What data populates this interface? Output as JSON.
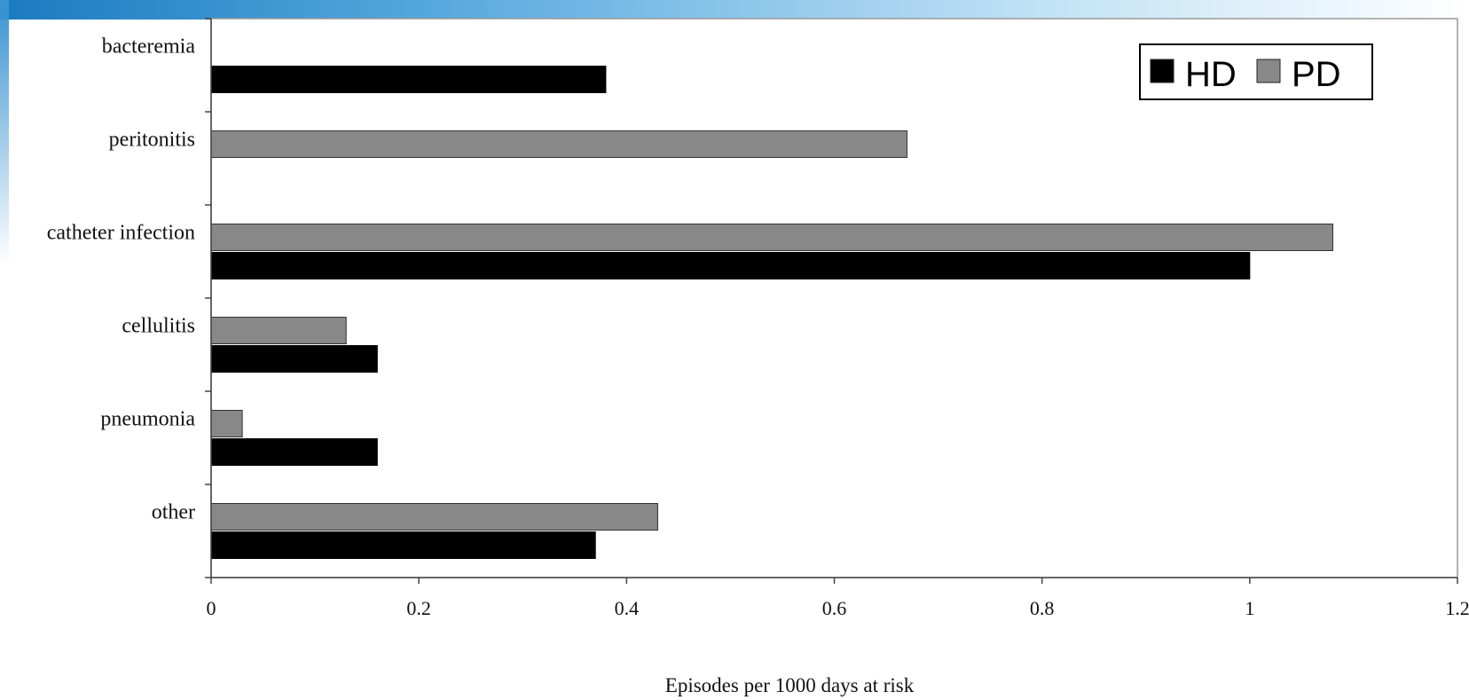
{
  "chart_data": {
    "type": "bar",
    "orientation": "horizontal",
    "categories": [
      "bacteremia",
      "peritonitis",
      "catheter infection",
      "cellulitis",
      "pneumonia",
      "other"
    ],
    "series": [
      {
        "name": "HD",
        "color": "#000000",
        "values": [
          0.38,
          null,
          1.0,
          0.16,
          0.16,
          0.37
        ]
      },
      {
        "name": "PD",
        "color": "#888888",
        "values": [
          null,
          0.67,
          1.08,
          0.13,
          0.03,
          0.43
        ]
      }
    ],
    "xlabel": "Episodes per 1000 days at risk",
    "ylabel": "",
    "title": "",
    "xlim": [
      0,
      1.2
    ],
    "xticks": [
      0,
      0.2,
      0.4,
      0.6,
      0.8,
      1,
      1.2
    ],
    "xtick_labels": [
      "0",
      "0.2",
      "0.4",
      "0.6",
      "0.8",
      "1",
      "1.2"
    ],
    "grid": false,
    "legend_position": "top-right"
  }
}
